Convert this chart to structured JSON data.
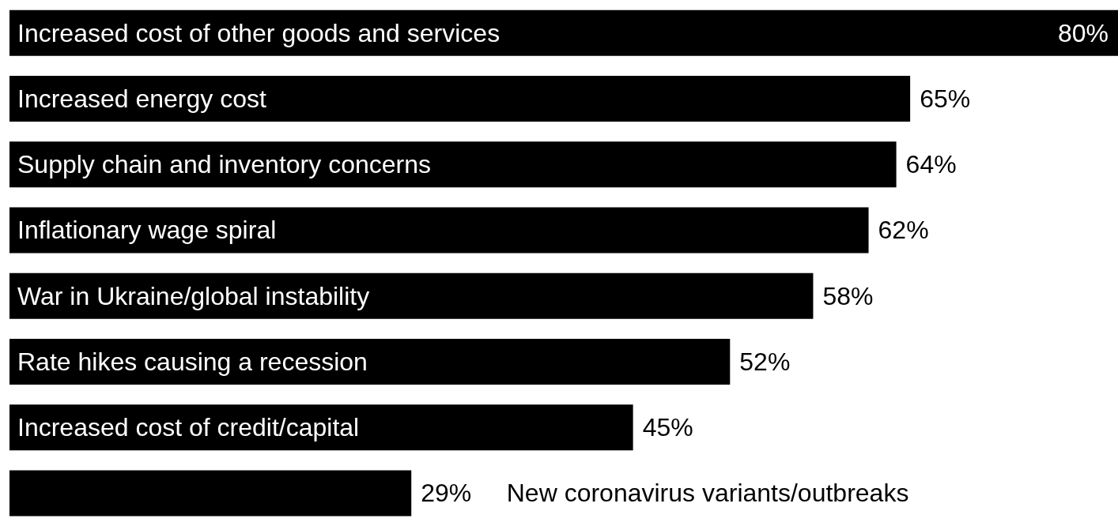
{
  "chart_data": {
    "type": "bar",
    "orientation": "horizontal",
    "color": "#000000",
    "categories": [
      "Increased cost of other goods and services",
      "Increased energy cost",
      "Supply chain and inventory concerns",
      "Inflationary wage spiral",
      "War in Ukraine/global instability",
      "Rate hikes causing a recession",
      "Increased cost of credit/capital",
      "New coronavirus variants/outbreaks"
    ],
    "values": [
      80,
      65,
      64,
      62,
      58,
      52,
      45,
      29
    ],
    "value_labels": [
      "80%",
      "65%",
      "64%",
      "62%",
      "58%",
      "52%",
      "45%",
      "29%"
    ]
  }
}
